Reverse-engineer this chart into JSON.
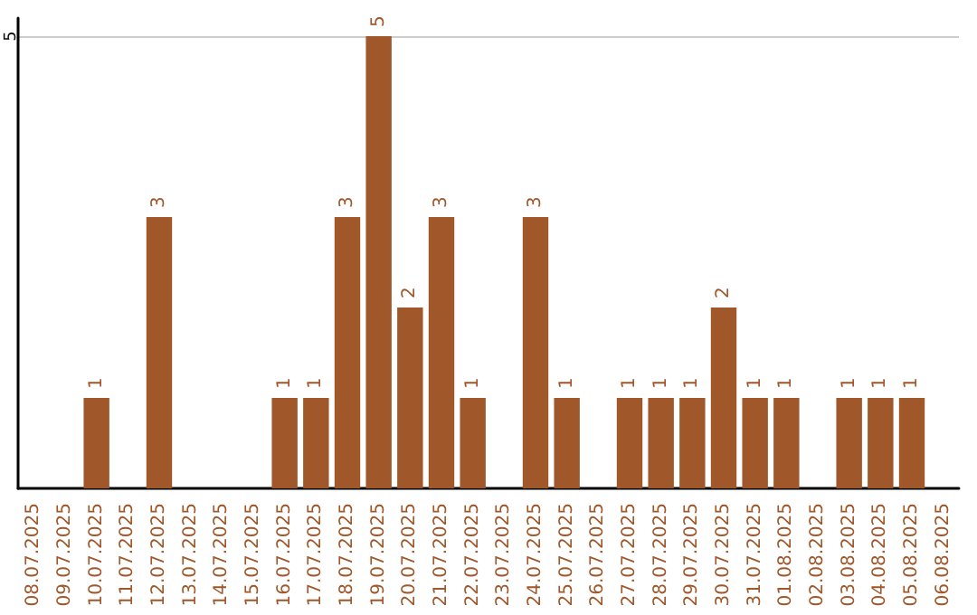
{
  "chart_data": {
    "type": "bar",
    "categories": [
      "08.07.2025",
      "09.07.2025",
      "10.07.2025",
      "11.07.2025",
      "12.07.2025",
      "13.07.2025",
      "14.07.2025",
      "15.07.2025",
      "16.07.2025",
      "17.07.2025",
      "18.07.2025",
      "19.07.2025",
      "20.07.2025",
      "21.07.2025",
      "22.07.2025",
      "23.07.2025",
      "24.07.2025",
      "25.07.2025",
      "26.07.2025",
      "27.07.2025",
      "28.07.2025",
      "29.07.2025",
      "30.07.2025",
      "31.07.2025",
      "01.08.2025",
      "02.08.2025",
      "03.08.2025",
      "04.08.2025",
      "05.08.2025",
      "06.08.2025"
    ],
    "values": [
      0,
      0,
      1,
      0,
      3,
      0,
      0,
      0,
      1,
      1,
      3,
      5,
      2,
      3,
      1,
      0,
      3,
      1,
      0,
      1,
      1,
      1,
      2,
      1,
      1,
      0,
      1,
      1,
      1,
      0
    ],
    "value_labels": [
      null,
      null,
      "1",
      null,
      "3",
      null,
      null,
      null,
      "1",
      "1",
      "3",
      "5",
      "2",
      "3",
      "1",
      null,
      "3",
      "1",
      null,
      "1",
      "1",
      "1",
      "2",
      "1",
      "1",
      null,
      "1",
      "1",
      "1",
      null
    ],
    "color": "#a0572a",
    "ylim": [
      0,
      5.2
    ],
    "yticks": [
      5
    ],
    "grid": "y"
  }
}
